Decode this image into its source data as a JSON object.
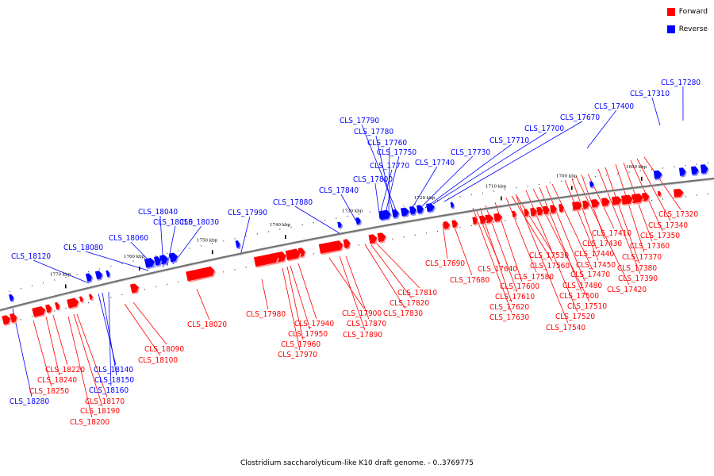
{
  "caption": "Clostridium saccharolyticum-like K10 draft genome. - 0..3769775",
  "legend": [
    {
      "label": "Forward",
      "color": "#ff0000"
    },
    {
      "label": "Reverse",
      "color": "#0000ff"
    }
  ],
  "colors": {
    "forward": "#ff0000",
    "reverse": "#0000ff",
    "axis": "#808080"
  },
  "ticks": [
    "1690 kbp",
    "1700 kbp",
    "1710 kbp",
    "1720 kbp",
    "1730 kbp",
    "1740 kbp",
    "1750 kbp",
    "1760 kbp",
    "1770 kbp"
  ],
  "reverse_labels": [
    "CLS_17280",
    "CLS_17310",
    "CLS_17400",
    "CLS_17670",
    "CLS_17700",
    "CLS_17710",
    "CLS_17730",
    "CLS_17740",
    "CLS_17790",
    "CLS_17780",
    "CLS_17760",
    "CLS_17750",
    "CLS_17770",
    "CLS_17800",
    "CLS_17840",
    "CLS_17880",
    "CLS_17990",
    "CLS_18040",
    "CLS_18050",
    "CLS_18030",
    "CLS_18060",
    "CLS_18080",
    "CLS_18120",
    "CLS_18140",
    "CLS_18150",
    "CLS_18160",
    "CLS_18280"
  ],
  "forward_labels": [
    "CLS_17320",
    "CLS_17340",
    "CLS_17350",
    "CLS_17360",
    "CLS_17370",
    "CLS_17380",
    "CLS_17390",
    "CLS_17410",
    "CLS_17420",
    "CLS_17430",
    "CLS_17440",
    "CLS_17450",
    "CLS_17470",
    "CLS_17480",
    "CLS_17500",
    "CLS_17510",
    "CLS_17520",
    "CLS_17530",
    "CLS_17540",
    "CLS_17560",
    "CLS_17580",
    "CLS_17600",
    "CLS_17610",
    "CLS_17620",
    "CLS_17630",
    "CLS_17640",
    "CLS_17680",
    "CLS_17690",
    "CLS_17810",
    "CLS_17820",
    "CLS_17830",
    "CLS_17870",
    "CLS_17890",
    "CLS_17900",
    "CLS_17940",
    "CLS_17950",
    "CLS_17960",
    "CLS_17970",
    "CLS_17980",
    "CLS_18020",
    "CLS_18090",
    "CLS_18100",
    "CLS_18170",
    "CLS_18190",
    "CLS_18200",
    "CLS_18220",
    "CLS_18240",
    "CLS_18250"
  ]
}
